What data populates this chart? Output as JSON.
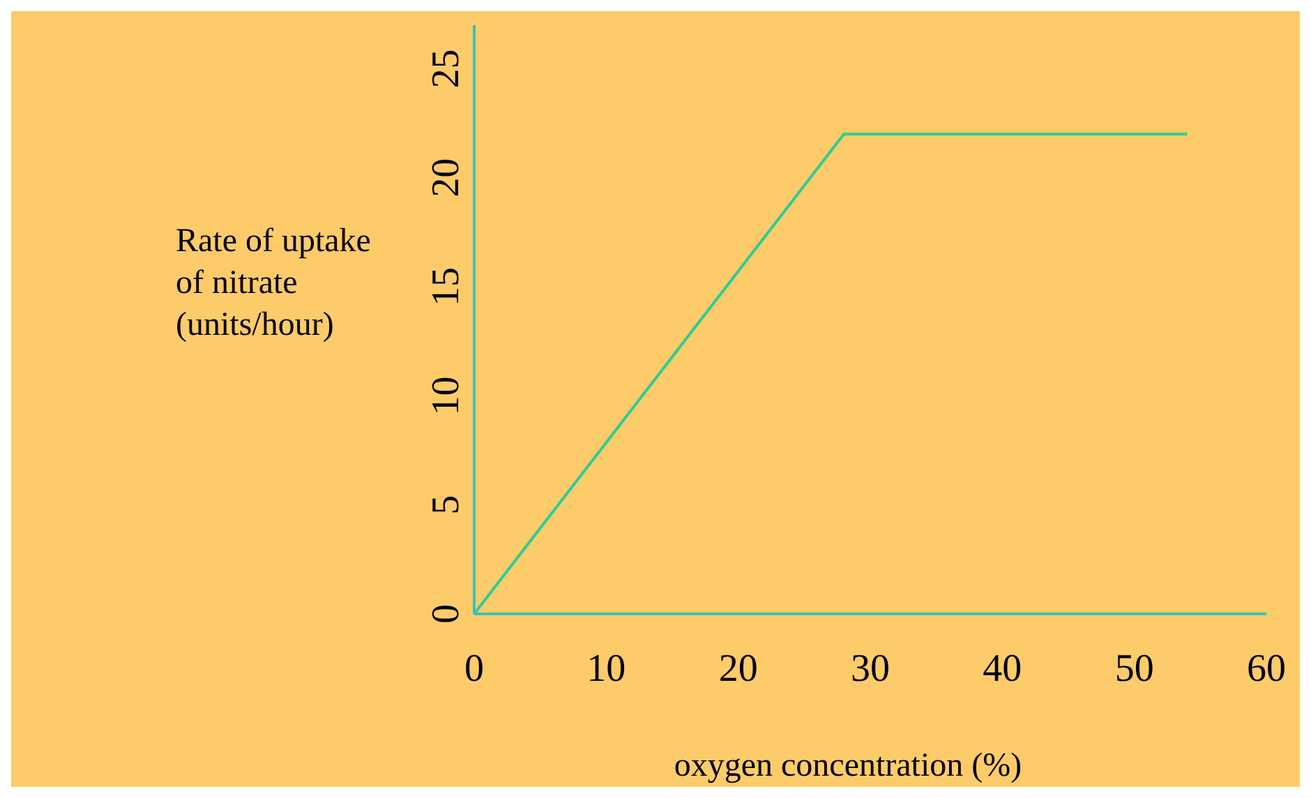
{
  "chart_data": {
    "type": "line",
    "xlabel": "oxygen concentration (%)",
    "ylabel": "Rate of uptake of nitrate (units/hour)",
    "series": [
      {
        "color": "#2dcc96",
        "x": [
          0,
          28,
          54
        ],
        "values": [
          0,
          22,
          22
        ]
      }
    ],
    "xlim": [
      0,
      60
    ],
    "xticks": [
      0,
      10,
      20,
      30,
      40,
      50,
      60
    ],
    "ylim": [
      0,
      27
    ],
    "yticks": [
      0,
      5,
      10,
      15,
      20,
      25
    ]
  }
}
